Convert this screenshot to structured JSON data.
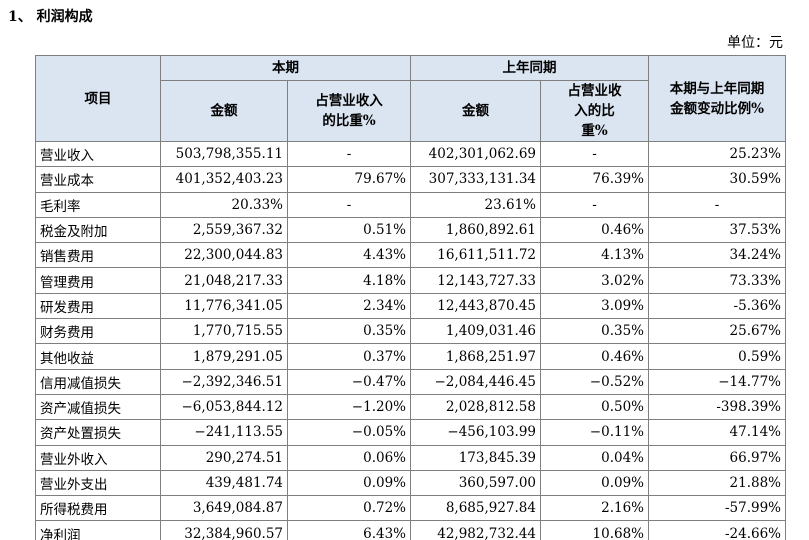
{
  "header": {
    "title": "1、 利润构成",
    "unit": "单位：元"
  },
  "table": {
    "top": [
      "项目",
      "本期",
      "上年同期",
      "本期与上年同期金额变动比例%"
    ],
    "sub": [
      "金额",
      "占营业收入的比重%",
      "金额",
      "占营业收入的比重%"
    ],
    "rows": [
      [
        "营业收入",
        "503,798,355.11",
        "-",
        "402,301,062.69",
        "-",
        "25.23%"
      ],
      [
        "营业成本",
        "401,352,403.23",
        "79.67%",
        "307,333,131.34",
        "76.39%",
        "30.59%"
      ],
      [
        "毛利率",
        "20.33%",
        "-",
        "23.61%",
        "-",
        "-"
      ],
      [
        "税金及附加",
        "2,559,367.32",
        "0.51%",
        "1,860,892.61",
        "0.46%",
        "37.53%"
      ],
      [
        "销售费用",
        "22,300,044.83",
        "4.43%",
        "16,611,511.72",
        "4.13%",
        "34.24%"
      ],
      [
        "管理费用",
        "21,048,217.33",
        "4.18%",
        "12,143,727.33",
        "3.02%",
        "73.33%"
      ],
      [
        "研发费用",
        "11,776,341.05",
        "2.34%",
        "12,443,870.45",
        "3.09%",
        "-5.36%"
      ],
      [
        "财务费用",
        "1,770,715.55",
        "0.35%",
        "1,409,031.46",
        "0.35%",
        "25.67%"
      ],
      [
        "其他收益",
        "1,879,291.05",
        "0.37%",
        "1,868,251.97",
        "0.46%",
        "0.59%"
      ],
      [
        "信用减值损失",
        "−2,392,346.51",
        "−0.47%",
        "−2,084,446.45",
        "−0.52%",
        "−14.77%"
      ],
      [
        "资产减值损失",
        "−6,053,844.12",
        "−1.20%",
        "2,028,812.58",
        "0.50%",
        "-398.39%"
      ],
      [
        "资产处置损失",
        "−241,113.55",
        "−0.05%",
        "−456,103.99",
        "−0.11%",
        "47.14%"
      ],
      [
        "营业外收入",
        "290,274.51",
        "0.06%",
        "173,845.39",
        "0.04%",
        "66.97%"
      ],
      [
        "营业外支出",
        "439,481.74",
        "0.09%",
        "360,597.00",
        "0.09%",
        "21.88%"
      ],
      [
        "所得税费用",
        "3,649,084.87",
        "0.72%",
        "8,685,927.84",
        "2.16%",
        "-57.99%"
      ],
      [
        "净利润",
        "32,384,960.57",
        "6.43%",
        "42,982,732.44",
        "10.68%",
        "-24.66%"
      ]
    ]
  }
}
